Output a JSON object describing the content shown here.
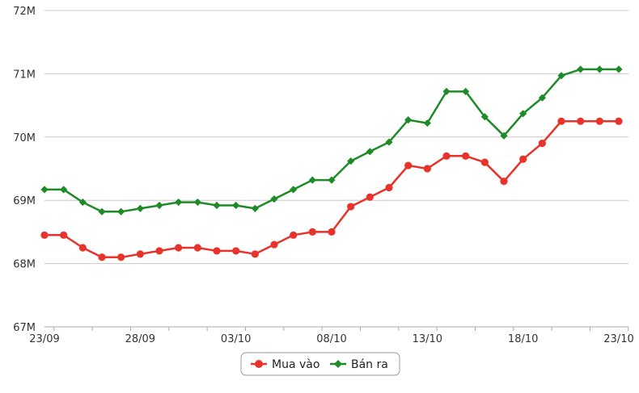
{
  "chart_data": {
    "type": "line",
    "title": "",
    "xlabel": "",
    "ylabel": "",
    "x": [
      "23/09",
      "24/09",
      "25/09",
      "26/09",
      "27/09",
      "28/09",
      "29/09",
      "30/09",
      "01/10",
      "02/10",
      "03/10",
      "04/10",
      "05/10",
      "06/10",
      "07/10",
      "08/10",
      "09/10",
      "10/10",
      "11/10",
      "12/10",
      "13/10",
      "14/10",
      "15/10",
      "16/10",
      "17/10",
      "18/10",
      "19/10",
      "20/10",
      "21/10",
      "22/10",
      "23/10"
    ],
    "xticks": [
      "23/09",
      "28/09",
      "03/10",
      "08/10",
      "13/10",
      "18/10",
      "23/10"
    ],
    "yticks": [
      "67M",
      "68M",
      "69M",
      "70M",
      "71M",
      "72M"
    ],
    "ylim": [
      67,
      72
    ],
    "yunit": "M",
    "grid": true,
    "legend_position": "bottom-center",
    "series": [
      {
        "name": "Mua vào",
        "color": "#e8322b",
        "marker": "circle",
        "values": [
          68.45,
          68.45,
          68.25,
          68.1,
          68.1,
          68.15,
          68.2,
          68.25,
          68.25,
          68.2,
          68.2,
          68.15,
          68.3,
          68.45,
          68.5,
          68.5,
          68.9,
          69.05,
          69.2,
          69.55,
          69.5,
          69.7,
          69.7,
          69.6,
          69.3,
          69.65,
          69.9,
          70.25,
          70.25,
          70.25,
          70.25
        ]
      },
      {
        "name": "Bán ra",
        "color": "#1e8a28",
        "marker": "diamond",
        "values": [
          69.17,
          69.17,
          68.97,
          68.82,
          68.82,
          68.87,
          68.92,
          68.97,
          68.97,
          68.92,
          68.92,
          68.87,
          69.02,
          69.17,
          69.32,
          69.32,
          69.62,
          69.77,
          69.92,
          70.27,
          70.22,
          70.72,
          70.72,
          70.32,
          70.02,
          70.37,
          70.62,
          70.97,
          71.07,
          71.07,
          71.07
        ]
      }
    ]
  }
}
